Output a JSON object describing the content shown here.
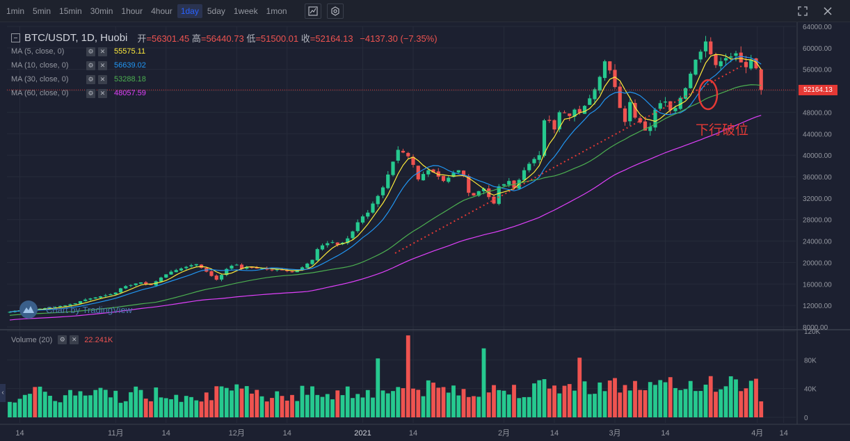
{
  "toolbar": {
    "timeframes": [
      "1min",
      "5min",
      "15min",
      "30min",
      "1hour",
      "4hour",
      "1day",
      "5day",
      "1week",
      "1mon"
    ],
    "active_timeframe": "1day",
    "icons": [
      "indicator-icon",
      "settings-icon",
      "fullscreen-icon",
      "close-icon"
    ]
  },
  "legend": {
    "symbol": "BTC/USDT, 1D, Huobi",
    "open_label": "开",
    "open": "=56301.45",
    "high_label": "高",
    "high": "=56440.73",
    "low_label": "低",
    "low": "=51500.01",
    "close_label": "收",
    "close": "=52164.13",
    "change": "−4137.30 (−7.35%)",
    "ma": [
      {
        "name": "MA (5, close, 0)",
        "value": "55575.11",
        "color": "#ffeb3b"
      },
      {
        "name": "MA (10, close, 0)",
        "value": "56639.02",
        "color": "#2196f3"
      },
      {
        "name": "MA (30, close, 0)",
        "value": "53288.18",
        "color": "#4caf50"
      },
      {
        "name": "MA (60, close, 0)",
        "value": "48057.59",
        "color": "#e040fb"
      }
    ]
  },
  "volume_legend": {
    "name": "Volume (20)",
    "value": "22.241K"
  },
  "watermark": "Chart by TradingView",
  "annotation": "下行破位",
  "last_price": "52164.13",
  "colors": {
    "up": "#26c98f",
    "down": "#ef5350",
    "grid": "#262b3a"
  },
  "chart_data": {
    "type": "candlestick",
    "price_axis_ticks": [
      "64000.00",
      "60000.00",
      "56000.00",
      "52000.00",
      "48000.00",
      "44000.00",
      "40000.00",
      "36000.00",
      "32000.00",
      "28000.00",
      "24000.00",
      "20000.00",
      "16000.00",
      "12000.00",
      "8000.00"
    ],
    "price_ylim": [
      8000,
      64000
    ],
    "volume_axis_ticks": [
      "120K",
      "80K",
      "40K",
      "0"
    ],
    "volume_ylim": [
      0,
      120000
    ],
    "x_tick_labels": [
      "14",
      "11月",
      "14",
      "12月",
      "14",
      "2021",
      "14",
      "2月",
      "14",
      "3月",
      "14",
      "4月",
      "14"
    ],
    "close_series": [
      10800,
      11000,
      11100,
      11200,
      11300,
      11250,
      11400,
      11500,
      11600,
      11700,
      11900,
      12000,
      12200,
      12400,
      12800,
      13100,
      13300,
      13500,
      13700,
      13900,
      14100,
      14400,
      15200,
      15600,
      15800,
      16100,
      16300,
      16000,
      15800,
      16500,
      17200,
      17800,
      18300,
      18600,
      18900,
      19200,
      19500,
      19700,
      19000,
      18300,
      17500,
      16800,
      17700,
      18800,
      19400,
      19600,
      18800,
      19200,
      19000,
      18900,
      19000,
      18700,
      18600,
      18700,
      18600,
      18400,
      18200,
      18600,
      19100,
      19800,
      20500,
      22500,
      23200,
      23600,
      23800,
      23300,
      23700,
      24500,
      25800,
      27500,
      28600,
      29300,
      31000,
      32400,
      34000,
      36400,
      38800,
      41000,
      40500,
      39800,
      38200,
      35500,
      36500,
      37200,
      36800,
      36000,
      35200,
      35800,
      36700,
      37200,
      36100,
      33000,
      32500,
      33300,
      33800,
      32200,
      31000,
      34200,
      34600,
      35200,
      33900,
      35400,
      37200,
      38400,
      39300,
      40000,
      46500,
      46400,
      44800,
      48000,
      47900,
      47300,
      48500,
      47900,
      49200,
      50600,
      52300,
      54600,
      57500,
      55800,
      52700,
      48800,
      46200,
      49900,
      47000,
      46100,
      44600,
      45300,
      48500,
      49700,
      50000,
      48400,
      48800,
      50700,
      52500,
      55200,
      57800,
      59300,
      61200,
      58800,
      56800,
      57500,
      58100,
      58400,
      59000,
      57300,
      56400,
      57800,
      56200,
      52164
    ],
    "ma_values_at_last_bar": {
      "MA5": 55575.11,
      "MA10": 56639.02,
      "MA30": 53288.18,
      "MA60": 48057.59
    },
    "last_volume": 22241
  }
}
